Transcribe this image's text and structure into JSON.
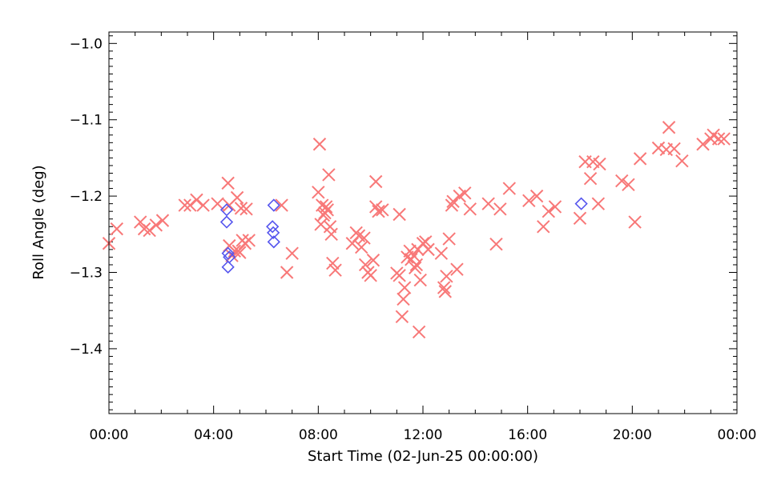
{
  "chart_data": {
    "type": "scatter",
    "xlabel": "Start Time (02-Jun-25 00:00:00)",
    "ylabel": "Roll Angle (deg)",
    "xlim": [
      0,
      24
    ],
    "ylim": [
      -1.485,
      -0.985
    ],
    "x_tick_values": [
      0,
      4,
      8,
      12,
      16,
      20,
      24
    ],
    "x_tick_labels": [
      "00:00",
      "04:00",
      "08:00",
      "12:00",
      "16:00",
      "20:00",
      "00:00"
    ],
    "y_tick_values": [
      -1.4,
      -1.3,
      -1.2,
      -1.1,
      -1.0
    ],
    "y_tick_labels": [
      "-1.4",
      "-1.3",
      "-1.2",
      "-1.1",
      "-1.0"
    ],
    "grid": false,
    "series": [
      {
        "marker": "x",
        "color": "#f87878",
        "x": [
          0.0,
          0.3,
          1.2,
          1.35,
          1.55,
          1.8,
          2.05,
          2.9,
          3.1,
          3.35,
          3.6,
          4.15,
          4.55,
          4.6,
          4.7,
          4.8,
          4.95,
          5.0,
          5.1,
          5.2,
          5.35,
          4.6,
          4.9,
          5.05,
          5.25,
          6.6,
          6.8,
          7.0,
          8.0,
          8.05,
          8.15,
          8.2,
          8.25,
          8.35,
          8.45,
          8.5,
          8.55,
          8.65,
          8.1,
          8.4,
          8.3,
          9.3,
          9.45,
          9.55,
          9.65,
          9.75,
          9.8,
          9.9,
          10.0,
          10.1,
          10.2,
          10.3,
          10.45,
          10.2,
          11.0,
          11.1,
          11.2,
          11.25,
          11.3,
          11.4,
          11.5,
          11.55,
          11.65,
          11.7,
          11.75,
          11.8,
          11.85,
          11.9,
          12.0,
          12.1,
          12.2,
          11.1,
          12.7,
          12.8,
          12.85,
          12.9,
          13.0,
          13.1,
          13.15,
          13.3,
          13.4,
          13.6,
          13.8,
          14.5,
          14.8,
          14.95,
          15.3,
          16.05,
          16.35,
          16.6,
          16.8,
          17.05,
          18.0,
          18.2,
          18.4,
          18.5,
          18.7,
          18.75,
          19.6,
          19.85,
          20.1,
          20.3,
          21.0,
          21.3,
          21.4,
          21.6,
          21.9,
          22.7,
          23.0,
          23.1,
          23.3,
          23.5
        ],
        "y": [
          -1.262,
          -1.243,
          -1.234,
          -1.243,
          -1.245,
          -1.238,
          -1.232,
          -1.212,
          -1.212,
          -1.205,
          -1.212,
          -1.21,
          -1.183,
          -1.265,
          -1.278,
          -1.272,
          -1.272,
          -1.274,
          -1.258,
          -1.262,
          -1.258,
          -1.212,
          -1.202,
          -1.216,
          -1.217,
          -1.212,
          -1.3,
          -1.275,
          -1.195,
          -1.132,
          -1.212,
          -1.225,
          -1.222,
          -1.218,
          -1.24,
          -1.25,
          -1.288,
          -1.297,
          -1.237,
          -1.172,
          -1.214,
          -1.262,
          -1.248,
          -1.252,
          -1.267,
          -1.255,
          -1.29,
          -1.3,
          -1.304,
          -1.284,
          -1.214,
          -1.22,
          -1.218,
          -1.181,
          -1.301,
          -1.304,
          -1.358,
          -1.335,
          -1.32,
          -1.28,
          -1.272,
          -1.283,
          -1.278,
          -1.294,
          -1.29,
          -1.27,
          -1.378,
          -1.31,
          -1.262,
          -1.26,
          -1.27,
          -1.224,
          -1.275,
          -1.32,
          -1.325,
          -1.305,
          -1.256,
          -1.212,
          -1.207,
          -1.296,
          -1.2,
          -1.196,
          -1.217,
          -1.21,
          -1.263,
          -1.217,
          -1.19,
          -1.206,
          -1.2,
          -1.24,
          -1.22,
          -1.214,
          -1.229,
          -1.155,
          -1.177,
          -1.155,
          -1.21,
          -1.158,
          -1.18,
          -1.185,
          -1.234,
          -1.151,
          -1.137,
          -1.139,
          -1.11,
          -1.138,
          -1.154,
          -1.132,
          -1.125,
          -1.12,
          -1.125,
          -1.125
        ]
      },
      {
        "marker": "diamond",
        "color": "#5555ee",
        "x": [
          4.5,
          4.5,
          4.55,
          4.6,
          4.55,
          6.3,
          6.25,
          6.28,
          6.3,
          18.05
        ],
        "y": [
          -1.218,
          -1.234,
          -1.275,
          -1.28,
          -1.293,
          -1.212,
          -1.24,
          -1.248,
          -1.26,
          -1.21
        ]
      }
    ]
  }
}
